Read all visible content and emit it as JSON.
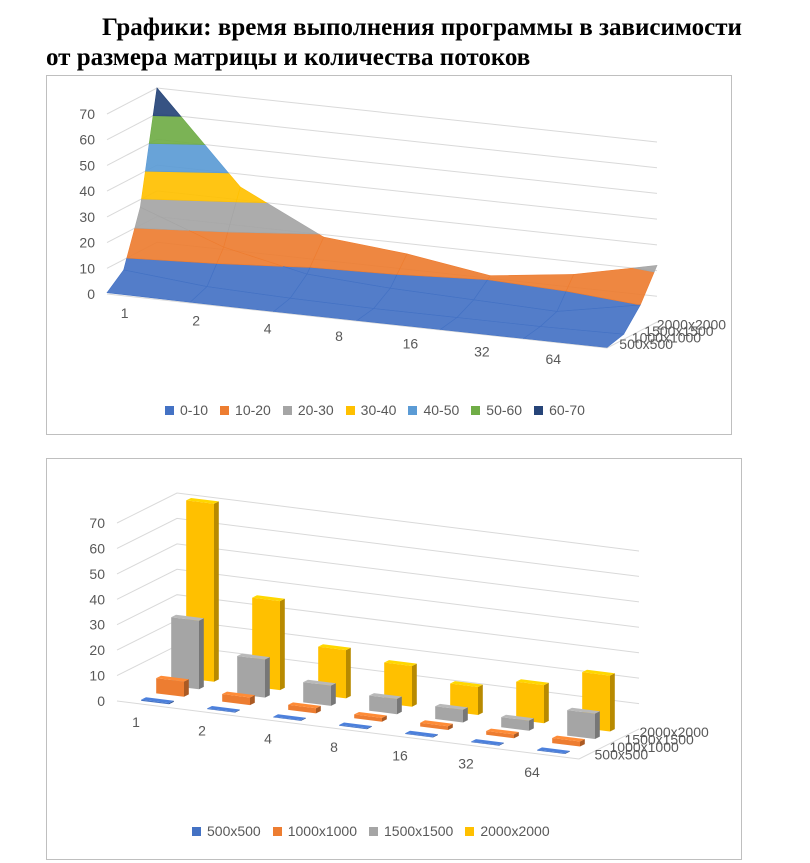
{
  "heading": {
    "line1": "Графики: время выполнения программы в зависимости",
    "line2": "от размера матрицы и количества потоков"
  },
  "chart_data": [
    {
      "type": "surface",
      "title": "",
      "threads": [
        "1",
        "2",
        "4",
        "8",
        "16",
        "32",
        "64"
      ],
      "sizes": [
        "500x500",
        "1000x1000",
        "1500x1500",
        "2000x2000"
      ],
      "z_ticks": [
        "0",
        "10",
        "20",
        "30",
        "40",
        "50",
        "60",
        "70"
      ],
      "zlim": [
        0,
        70
      ],
      "series": [
        {
          "name": "500x500",
          "values": [
            0.5,
            0.3,
            0.2,
            0.2,
            0.2,
            0.2,
            0.2
          ]
        },
        {
          "name": "1000x1000",
          "values": [
            6,
            3,
            2,
            1.5,
            1.5,
            1.5,
            2
          ]
        },
        {
          "name": "1500x1500",
          "values": [
            27,
            15,
            8,
            6,
            5,
            4,
            10
          ]
        },
        {
          "name": "2000x2000",
          "values": [
            70,
            35,
            19,
            16,
            11,
            15,
            22
          ]
        }
      ],
      "legend": [
        {
          "label": "0-10",
          "color": "#4472C4"
        },
        {
          "label": "10-20",
          "color": "#ED7D31"
        },
        {
          "label": "20-30",
          "color": "#A5A5A5"
        },
        {
          "label": "30-40",
          "color": "#FFC000"
        },
        {
          "label": "40-50",
          "color": "#5B9BD5"
        },
        {
          "label": "50-60",
          "color": "#70AD47"
        },
        {
          "label": "60-70",
          "color": "#264478"
        }
      ],
      "legend_position": "bottom"
    },
    {
      "type": "bar3d",
      "title": "",
      "threads": [
        "1",
        "2",
        "4",
        "8",
        "16",
        "32",
        "64"
      ],
      "sizes": [
        "500x500",
        "1000x1000",
        "1500x1500",
        "2000x2000"
      ],
      "z_ticks": [
        "0",
        "10",
        "20",
        "30",
        "40",
        "50",
        "60",
        "70"
      ],
      "zlim": [
        0,
        70
      ],
      "series": [
        {
          "name": "500x500",
          "color": "#4472C4",
          "values": [
            0.5,
            0.3,
            0.2,
            0.2,
            0.2,
            0.2,
            0.2
          ]
        },
        {
          "name": "1000x1000",
          "color": "#ED7D31",
          "values": [
            6,
            3,
            2,
            1.5,
            1.5,
            1.5,
            2
          ]
        },
        {
          "name": "1500x1500",
          "color": "#A5A5A5",
          "values": [
            27,
            15,
            8,
            6,
            5,
            4,
            10
          ]
        },
        {
          "name": "2000x2000",
          "color": "#FFC000",
          "values": [
            70,
            35,
            19,
            16,
            11,
            15,
            22
          ]
        }
      ],
      "legend_position": "bottom"
    }
  ]
}
